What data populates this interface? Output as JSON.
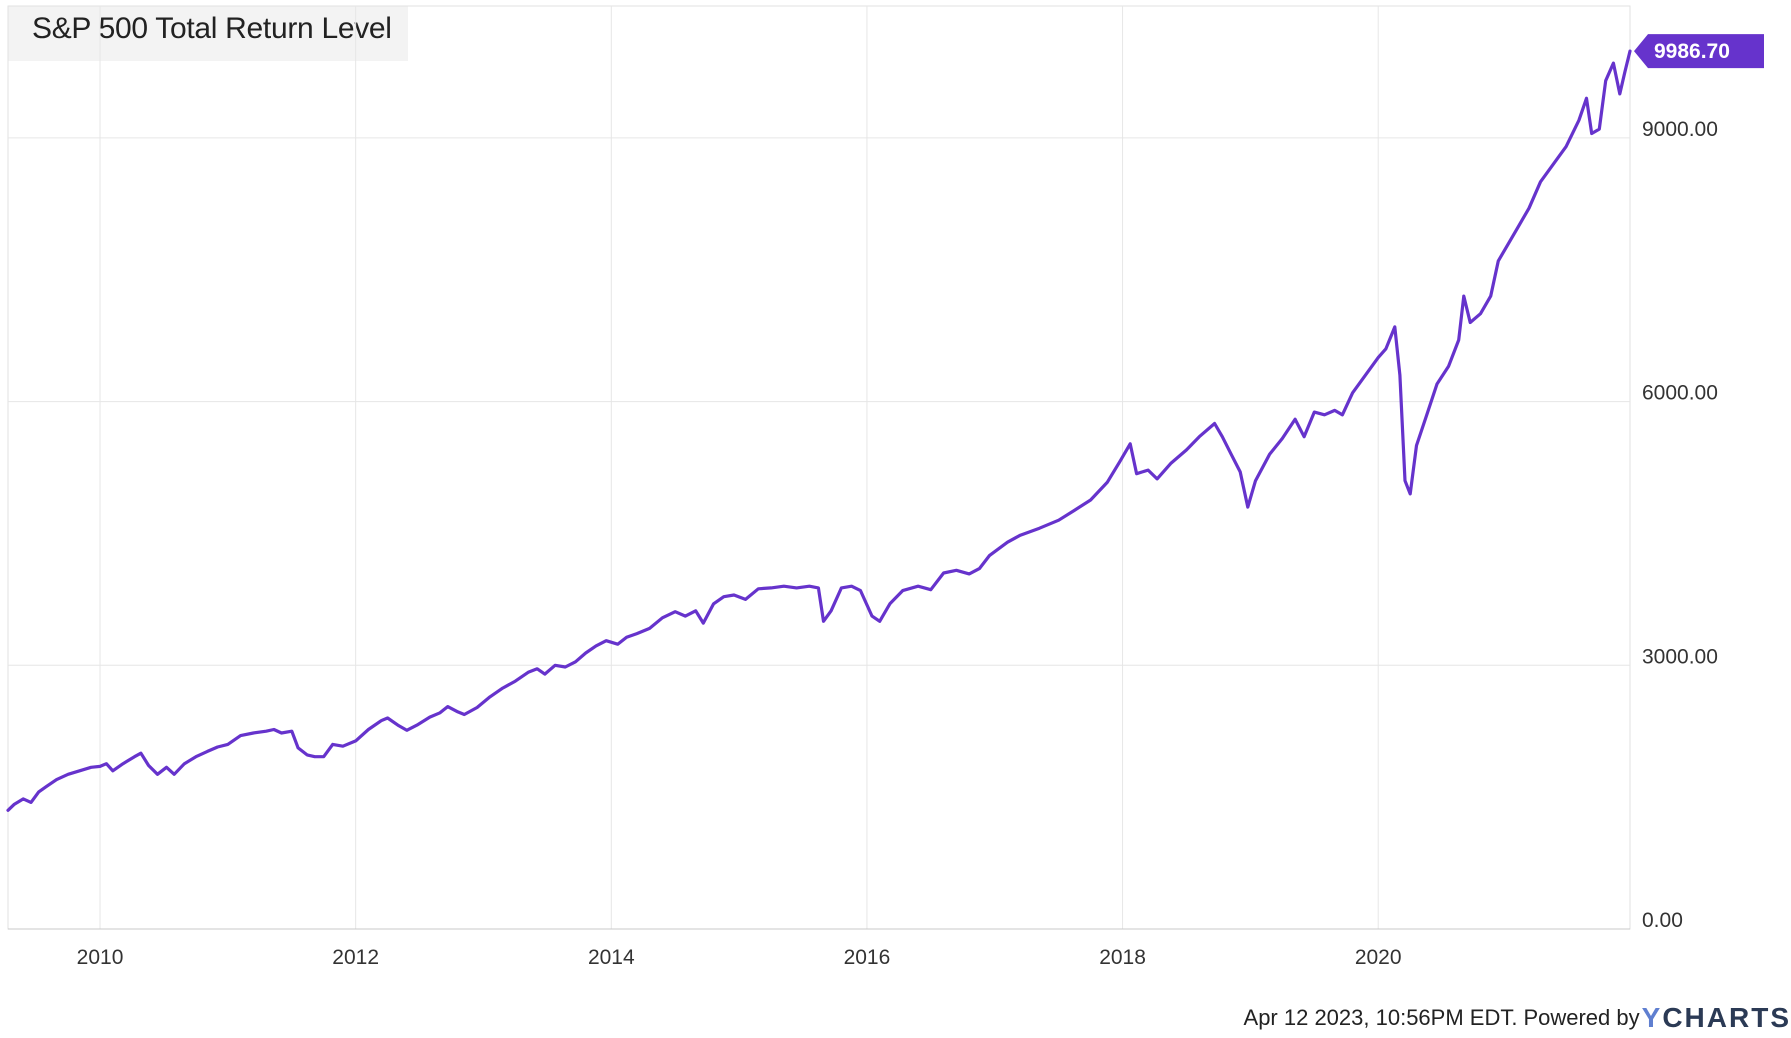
{
  "chart_data": {
    "type": "line",
    "title": "S&P 500 Total Return Level",
    "xlabel": "",
    "ylabel": "",
    "x_tick_labels": [
      "2010",
      "2012",
      "2014",
      "2016",
      "2018",
      "2020"
    ],
    "y_tick_labels": [
      "0.00",
      "3000.00",
      "6000.00",
      "9000.00"
    ],
    "xlim": [
      2009.28,
      2021.97
    ],
    "ylim": [
      0,
      10500
    ],
    "grid": true,
    "series": [
      {
        "color": "#6633cc",
        "last_value_label": "9986.70",
        "points": [
          [
            2009.28,
            1350
          ],
          [
            2009.33,
            1420
          ],
          [
            2009.4,
            1480
          ],
          [
            2009.46,
            1440
          ],
          [
            2009.52,
            1560
          ],
          [
            2009.58,
            1620
          ],
          [
            2009.66,
            1700
          ],
          [
            2009.75,
            1760
          ],
          [
            2009.84,
            1800
          ],
          [
            2009.93,
            1840
          ],
          [
            2010.0,
            1850
          ],
          [
            2010.05,
            1880
          ],
          [
            2010.1,
            1800
          ],
          [
            2010.18,
            1880
          ],
          [
            2010.27,
            1960
          ],
          [
            2010.32,
            2000
          ],
          [
            2010.38,
            1860
          ],
          [
            2010.45,
            1760
          ],
          [
            2010.52,
            1840
          ],
          [
            2010.58,
            1760
          ],
          [
            2010.66,
            1880
          ],
          [
            2010.75,
            1960
          ],
          [
            2010.84,
            2020
          ],
          [
            2010.92,
            2070
          ],
          [
            2011.0,
            2100
          ],
          [
            2011.1,
            2200
          ],
          [
            2011.2,
            2230
          ],
          [
            2011.3,
            2250
          ],
          [
            2011.36,
            2270
          ],
          [
            2011.42,
            2230
          ],
          [
            2011.5,
            2250
          ],
          [
            2011.55,
            2060
          ],
          [
            2011.62,
            1980
          ],
          [
            2011.68,
            1960
          ],
          [
            2011.75,
            1960
          ],
          [
            2011.82,
            2100
          ],
          [
            2011.9,
            2080
          ],
          [
            2012.0,
            2140
          ],
          [
            2012.1,
            2270
          ],
          [
            2012.2,
            2370
          ],
          [
            2012.25,
            2400
          ],
          [
            2012.33,
            2320
          ],
          [
            2012.4,
            2260
          ],
          [
            2012.48,
            2320
          ],
          [
            2012.58,
            2410
          ],
          [
            2012.66,
            2460
          ],
          [
            2012.72,
            2530
          ],
          [
            2012.8,
            2470
          ],
          [
            2012.85,
            2440
          ],
          [
            2012.95,
            2520
          ],
          [
            2013.05,
            2640
          ],
          [
            2013.15,
            2740
          ],
          [
            2013.25,
            2820
          ],
          [
            2013.35,
            2920
          ],
          [
            2013.42,
            2960
          ],
          [
            2013.48,
            2900
          ],
          [
            2013.56,
            3000
          ],
          [
            2013.64,
            2980
          ],
          [
            2013.72,
            3040
          ],
          [
            2013.8,
            3140
          ],
          [
            2013.88,
            3220
          ],
          [
            2013.96,
            3280
          ],
          [
            2014.05,
            3240
          ],
          [
            2014.12,
            3320
          ],
          [
            2014.2,
            3360
          ],
          [
            2014.3,
            3420
          ],
          [
            2014.4,
            3540
          ],
          [
            2014.5,
            3610
          ],
          [
            2014.58,
            3560
          ],
          [
            2014.66,
            3620
          ],
          [
            2014.72,
            3480
          ],
          [
            2014.8,
            3700
          ],
          [
            2014.88,
            3780
          ],
          [
            2014.96,
            3800
          ],
          [
            2015.05,
            3750
          ],
          [
            2015.15,
            3870
          ],
          [
            2015.25,
            3880
          ],
          [
            2015.35,
            3900
          ],
          [
            2015.45,
            3880
          ],
          [
            2015.55,
            3900
          ],
          [
            2015.62,
            3880
          ],
          [
            2015.66,
            3500
          ],
          [
            2015.72,
            3620
          ],
          [
            2015.8,
            3880
          ],
          [
            2015.88,
            3900
          ],
          [
            2015.95,
            3850
          ],
          [
            2016.04,
            3560
          ],
          [
            2016.1,
            3500
          ],
          [
            2016.18,
            3700
          ],
          [
            2016.28,
            3850
          ],
          [
            2016.4,
            3900
          ],
          [
            2016.5,
            3860
          ],
          [
            2016.6,
            4050
          ],
          [
            2016.7,
            4080
          ],
          [
            2016.8,
            4040
          ],
          [
            2016.88,
            4100
          ],
          [
            2016.96,
            4250
          ],
          [
            2017.1,
            4400
          ],
          [
            2017.2,
            4480
          ],
          [
            2017.35,
            4560
          ],
          [
            2017.5,
            4650
          ],
          [
            2017.62,
            4760
          ],
          [
            2017.75,
            4880
          ],
          [
            2017.88,
            5080
          ],
          [
            2017.98,
            5320
          ],
          [
            2018.06,
            5520
          ],
          [
            2018.11,
            5180
          ],
          [
            2018.2,
            5220
          ],
          [
            2018.27,
            5120
          ],
          [
            2018.38,
            5300
          ],
          [
            2018.5,
            5450
          ],
          [
            2018.6,
            5600
          ],
          [
            2018.72,
            5750
          ],
          [
            2018.78,
            5600
          ],
          [
            2018.85,
            5400
          ],
          [
            2018.92,
            5200
          ],
          [
            2018.98,
            4800
          ],
          [
            2019.04,
            5100
          ],
          [
            2019.15,
            5400
          ],
          [
            2019.25,
            5580
          ],
          [
            2019.35,
            5800
          ],
          [
            2019.42,
            5600
          ],
          [
            2019.5,
            5880
          ],
          [
            2019.58,
            5850
          ],
          [
            2019.66,
            5900
          ],
          [
            2019.72,
            5850
          ],
          [
            2019.8,
            6100
          ],
          [
            2019.9,
            6300
          ],
          [
            2020.0,
            6500
          ],
          [
            2020.06,
            6600
          ],
          [
            2020.13,
            6850
          ],
          [
            2020.17,
            6300
          ],
          [
            2020.21,
            5100
          ],
          [
            2020.25,
            4950
          ],
          [
            2020.3,
            5500
          ],
          [
            2020.38,
            5850
          ],
          [
            2020.46,
            6200
          ],
          [
            2020.55,
            6400
          ],
          [
            2020.63,
            6700
          ],
          [
            2020.67,
            7200
          ],
          [
            2020.72,
            6900
          ],
          [
            2020.8,
            7000
          ],
          [
            2020.88,
            7200
          ],
          [
            2020.94,
            7600
          ],
          [
            2021.02,
            7800
          ],
          [
            2021.1,
            8000
          ],
          [
            2021.18,
            8200
          ],
          [
            2021.27,
            8500
          ],
          [
            2021.37,
            8700
          ],
          [
            2021.47,
            8900
          ],
          [
            2021.57,
            9200
          ],
          [
            2021.63,
            9450
          ],
          [
            2021.67,
            9050
          ],
          [
            2021.73,
            9100
          ],
          [
            2021.78,
            9650
          ],
          [
            2021.84,
            9850
          ],
          [
            2021.89,
            9500
          ],
          [
            2021.93,
            9750
          ],
          [
            2021.97,
            9986.7
          ]
        ]
      }
    ]
  },
  "footer": {
    "timestamp_text": "Apr 12 2023, 10:56PM EDT.",
    "powered_by_text": "Powered by",
    "brand_y": "Y",
    "brand_rest": "CHARTS"
  }
}
